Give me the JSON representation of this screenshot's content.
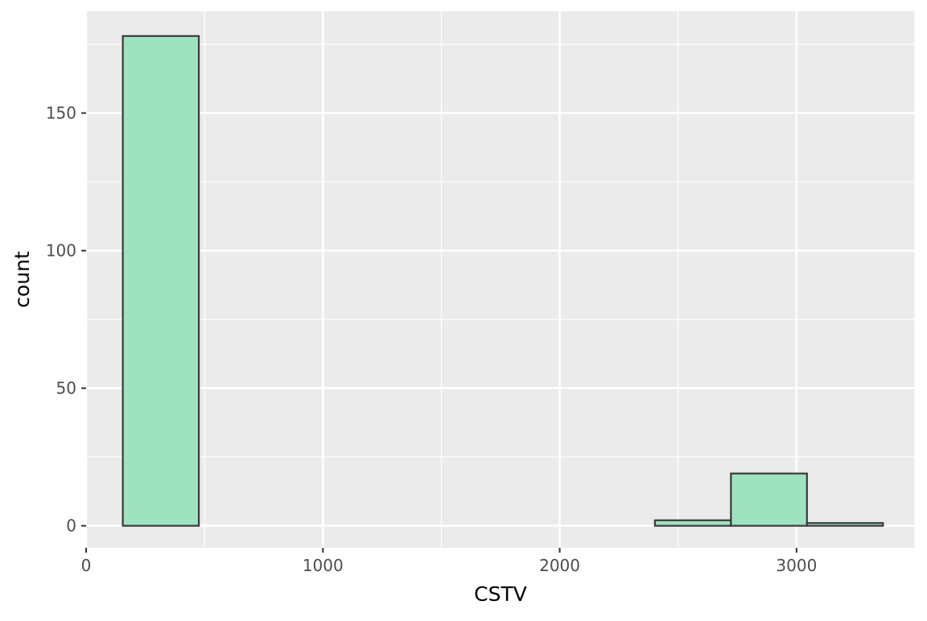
{
  "chart_data": {
    "type": "bar",
    "title": "",
    "xlabel": "CSTV",
    "ylabel": "count",
    "xlim": [
      0,
      3500
    ],
    "ylim": [
      -8,
      187
    ],
    "x_ticks": [
      0,
      1000,
      2000,
      3000
    ],
    "x_tick_labels": [
      "0",
      "1000",
      "2000",
      "3000"
    ],
    "y_ticks": [
      0,
      50,
      100,
      150
    ],
    "y_tick_labels": [
      "0",
      "50",
      "100",
      "150"
    ],
    "grid": true,
    "bins": [
      {
        "x0": 155,
        "x1": 476,
        "count": 178
      },
      {
        "x0": 476,
        "x1": 797,
        "count": 0
      },
      {
        "x0": 797,
        "x1": 1118,
        "count": 0
      },
      {
        "x0": 1118,
        "x1": 1439,
        "count": 0
      },
      {
        "x0": 1439,
        "x1": 1760,
        "count": 0
      },
      {
        "x0": 1760,
        "x1": 2081,
        "count": 0
      },
      {
        "x0": 2081,
        "x1": 2402,
        "count": 0
      },
      {
        "x0": 2402,
        "x1": 2723,
        "count": 2
      },
      {
        "x0": 2723,
        "x1": 3044,
        "count": 19
      },
      {
        "x0": 3044,
        "x1": 3365,
        "count": 1
      }
    ],
    "colors": {
      "fill": "#9fe2bf",
      "stroke": "#3a3a3a",
      "panel": "#ebebeb",
      "grid": "#ffffff"
    }
  }
}
